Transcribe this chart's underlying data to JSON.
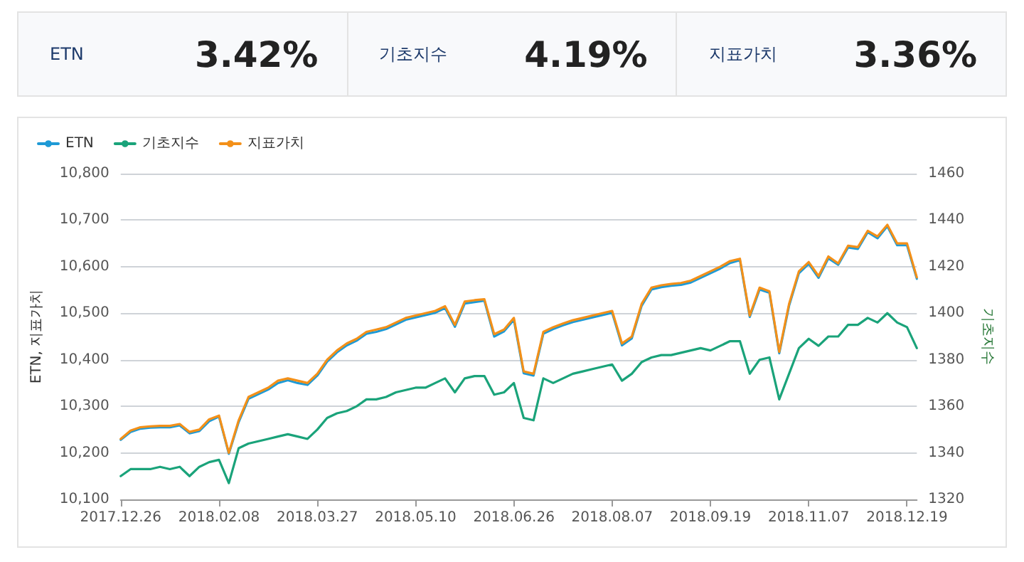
{
  "chart_data": [
    {
      "type": "other",
      "annotations": [
        "ETN",
        "3.42%",
        "기초지수",
        "4.19%",
        "지표가치",
        "3.36%"
      ]
    },
    {
      "type": "line",
      "xlabel": null,
      "ylabel": "ETN, 지표가치",
      "y2label": "기초지수",
      "legend": "top left",
      "grid": "y",
      "categories": [
        "2017.12.26",
        null,
        null,
        null,
        null,
        null,
        null,
        null,
        null,
        null,
        "2018.02.08",
        null,
        null,
        null,
        null,
        null,
        null,
        null,
        null,
        null,
        "2018.03.27",
        null,
        null,
        null,
        null,
        null,
        null,
        null,
        null,
        null,
        "2018.05.10",
        null,
        null,
        null,
        null,
        null,
        null,
        null,
        null,
        null,
        "2018.06.26",
        null,
        null,
        null,
        null,
        null,
        null,
        null,
        null,
        null,
        "2018.08.07",
        null,
        null,
        null,
        null,
        null,
        null,
        null,
        null,
        null,
        "2018.09.19",
        null,
        null,
        null,
        null,
        null,
        null,
        null,
        null,
        null,
        "2018.11.07",
        null,
        null,
        null,
        null,
        null,
        null,
        null,
        null,
        null,
        "2018.12.19",
        null
      ],
      "ylim": [
        10100,
        10800
      ],
      "yticks": [
        {
          "value": 10100,
          "label": "10,100"
        },
        {
          "value": 10200,
          "label": "10,200"
        },
        {
          "value": 10300,
          "label": "10,300"
        },
        {
          "value": 10400,
          "label": "10,400"
        },
        {
          "value": 10500,
          "label": "10,500"
        },
        {
          "value": 10600,
          "label": "10,600"
        },
        {
          "value": 10700,
          "label": "10,700"
        },
        {
          "value": 10800,
          "label": "10,800"
        }
      ],
      "y2lim": [
        1320,
        1460
      ],
      "y2ticks": [
        1320,
        1340,
        1360,
        1380,
        1400,
        1420,
        1440,
        1460
      ],
      "series": [
        {
          "name": "ETN",
          "color": "#1e9ad6",
          "values": [
            10228,
            10245,
            10252,
            10254,
            10255,
            10255,
            10259,
            10242,
            10247,
            10268,
            10278,
            10198,
            10266,
            10316,
            10326,
            10336,
            10350,
            10356,
            10350,
            10346,
            10366,
            10396,
            10416,
            10431,
            10441,
            10456,
            10460,
            10466,
            10476,
            10486,
            10491,
            10496,
            10501,
            10511,
            10471,
            10521,
            10524,
            10527,
            10450,
            10461,
            10486,
            10371,
            10366,
            10456,
            10466,
            10474,
            10481,
            10486,
            10491,
            10496,
            10501,
            10431,
            10446,
            10516,
            10551,
            10556,
            10559,
            10561,
            10566,
            10576,
            10586,
            10596,
            10608,
            10614,
            10492,
            10551,
            10544,
            10414,
            10516,
            10586,
            10606,
            10576,
            10618,
            10604,
            10641,
            10638,
            10674,
            10661,
            10687,
            10646,
            10646,
            10574
          ]
        },
        {
          "name": "기초지수",
          "color": "#1aa37a",
          "axis": "y2",
          "values": [
            1330,
            1333,
            1333,
            1333,
            1334,
            1333,
            1334,
            1330,
            1334,
            1336,
            1337,
            1327,
            1342,
            1344,
            1345,
            1346,
            1347,
            1348,
            1347,
            1346,
            1350,
            1355,
            1357,
            1358,
            1360,
            1363,
            1363,
            1364,
            1366,
            1367,
            1368,
            1368,
            1370,
            1372,
            1366,
            1372,
            1373,
            1373,
            1365,
            1366,
            1370,
            1355,
            1354,
            1372,
            1370,
            1372,
            1374,
            1375,
            1376,
            1377,
            1378,
            1371,
            1374,
            1379,
            1381,
            1382,
            1382,
            1383,
            1384,
            1385,
            1384,
            1386,
            1388,
            1388,
            1374,
            1380,
            1381,
            1363,
            1374,
            1385,
            1389,
            1386,
            1390,
            1390,
            1395,
            1395,
            1398,
            1396,
            1400,
            1396,
            1394,
            1385
          ]
        },
        {
          "name": "지표가치",
          "color": "#f39019",
          "values": [
            10230,
            10248,
            10255,
            10257,
            10258,
            10258,
            10262,
            10245,
            10250,
            10272,
            10280,
            10200,
            10270,
            10320,
            10330,
            10340,
            10355,
            10360,
            10355,
            10350,
            10370,
            10400,
            10420,
            10435,
            10445,
            10460,
            10465,
            10470,
            10480,
            10490,
            10495,
            10500,
            10505,
            10515,
            10475,
            10525,
            10528,
            10530,
            10455,
            10465,
            10490,
            10375,
            10370,
            10460,
            10470,
            10478,
            10485,
            10490,
            10495,
            10500,
            10505,
            10435,
            10450,
            10520,
            10555,
            10560,
            10563,
            10565,
            10570,
            10580,
            10590,
            10600,
            10612,
            10617,
            10495,
            10555,
            10547,
            10417,
            10520,
            10590,
            10610,
            10580,
            10622,
            10607,
            10645,
            10642,
            10677,
            10665,
            10690,
            10650,
            10650,
            10577
          ]
        }
      ]
    }
  ]
}
